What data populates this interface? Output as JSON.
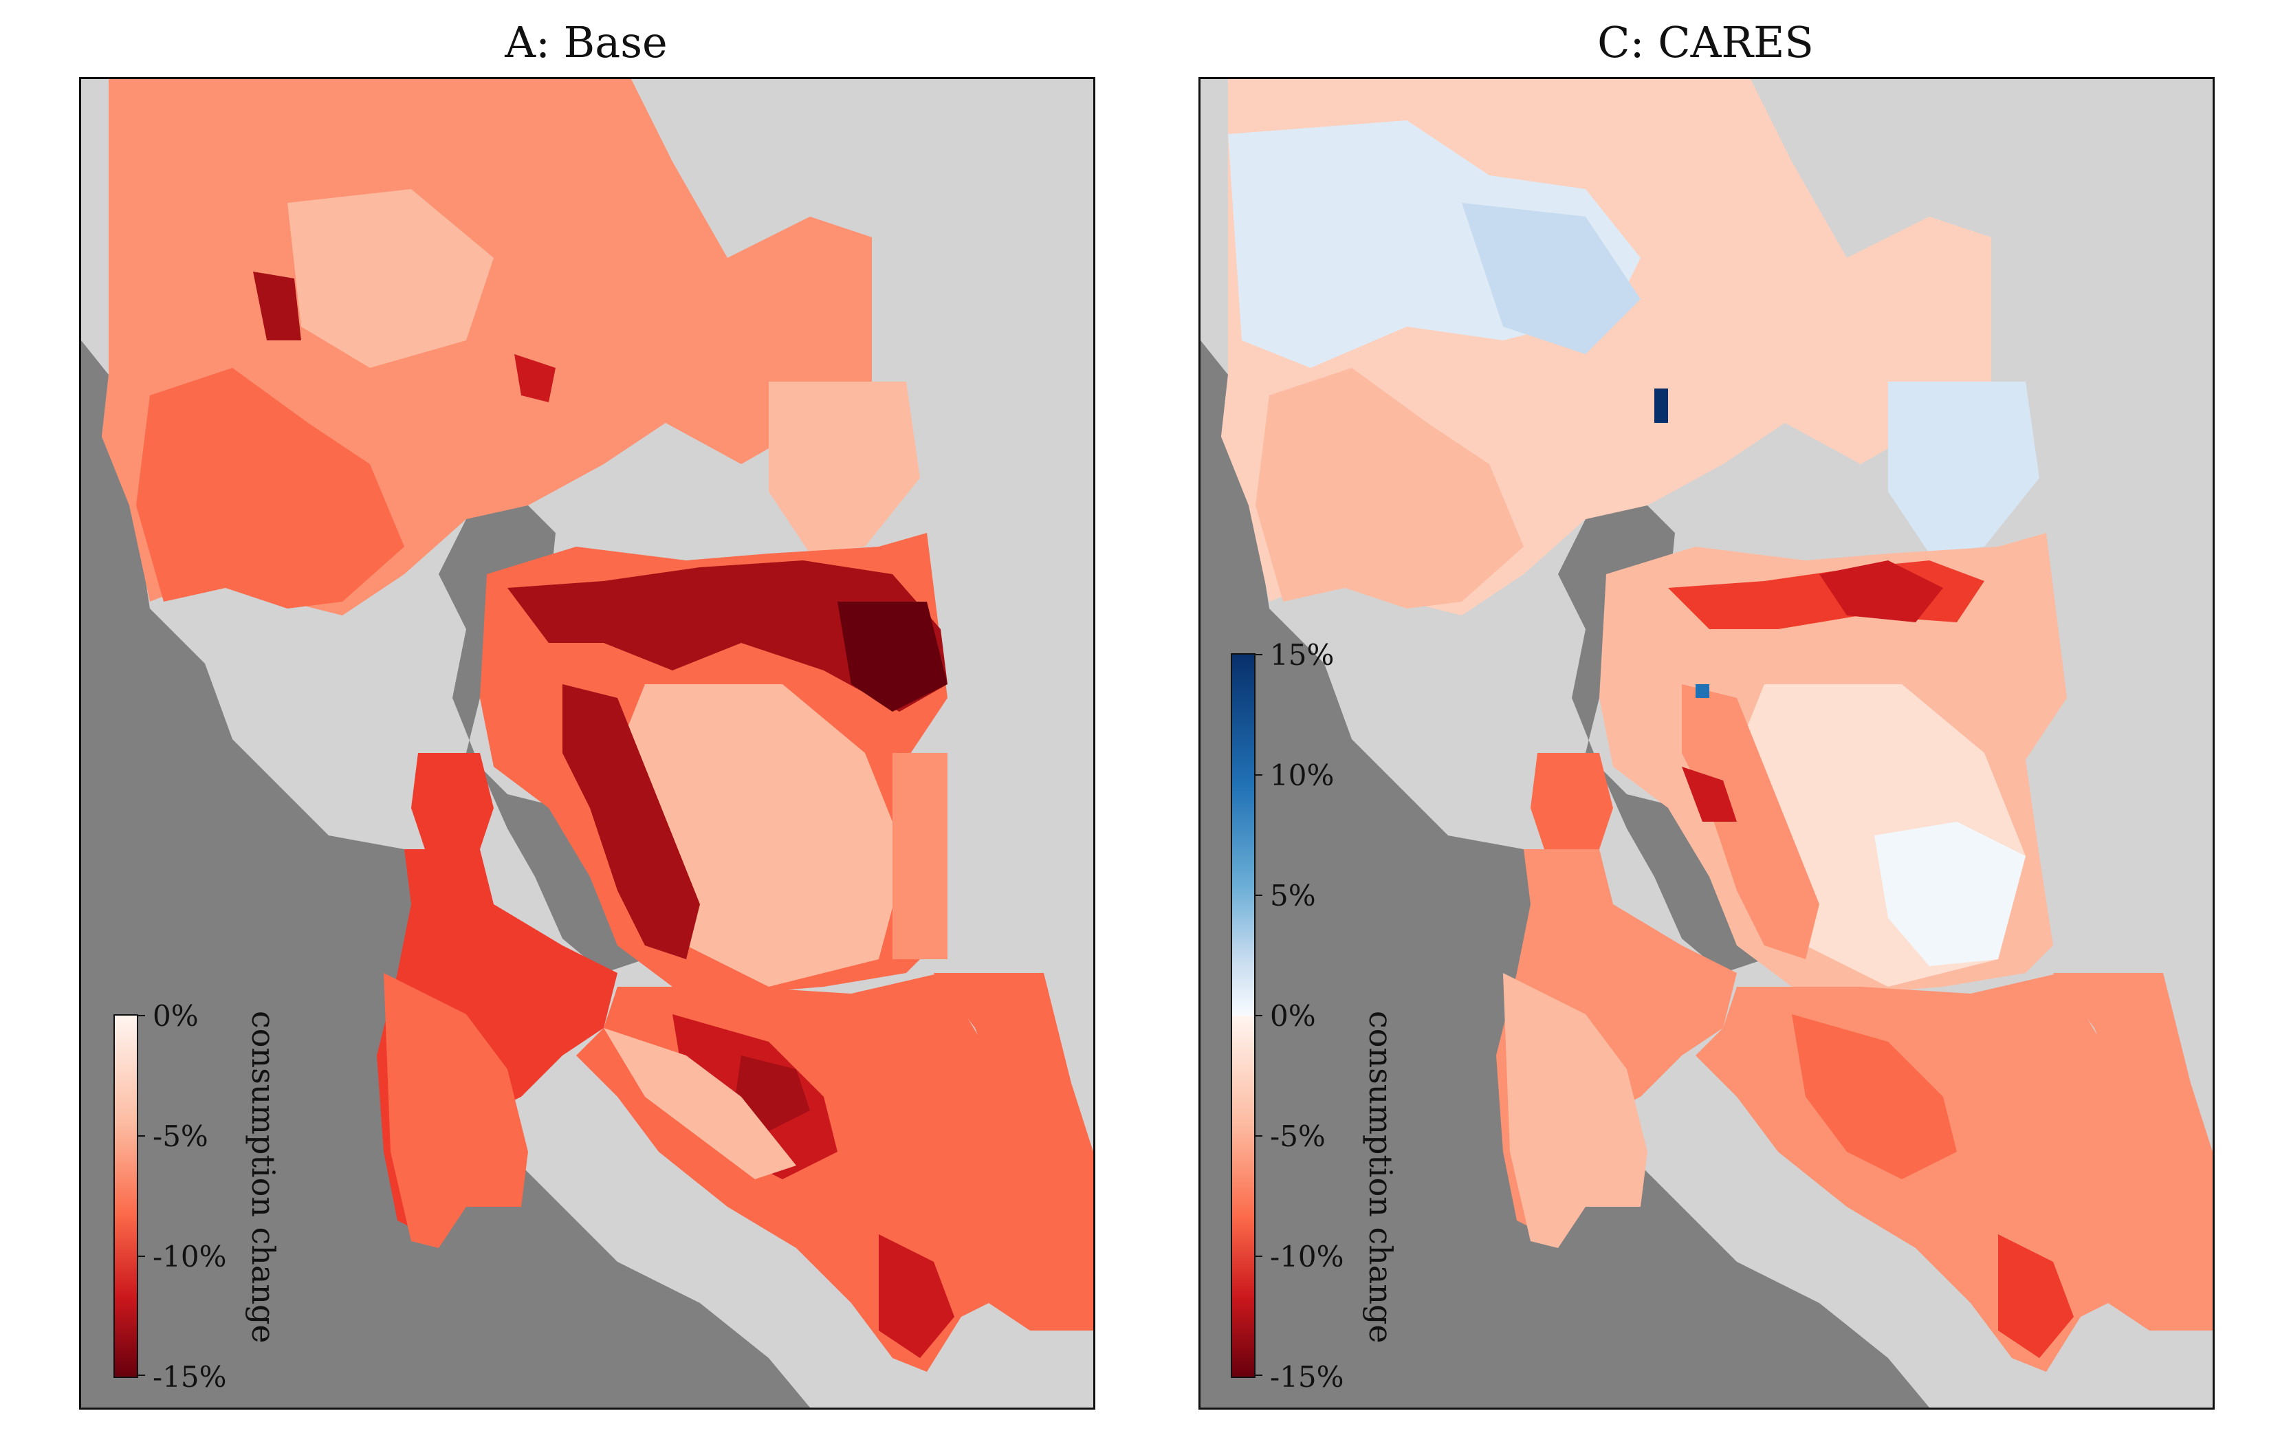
{
  "panels": [
    {
      "title": "A: Base",
      "colorbar": {
        "label": "consumption change",
        "ticks": [
          "0%",
          "-5%",
          "-10%",
          "-15%"
        ],
        "range": [
          -15,
          0
        ]
      }
    },
    {
      "title": "C: CARES",
      "colorbar": {
        "label": "consumption change",
        "ticks": [
          "15%",
          "10%",
          "5%",
          "0%",
          "-5%",
          "-10%",
          "-15%"
        ],
        "range": [
          -15,
          15
        ]
      }
    }
  ],
  "colors": {
    "land_outside": "#d3d3d3",
    "water": "#808080",
    "reds": [
      "#fff5f0",
      "#fcbba1",
      "#fb6a4a",
      "#cb181d",
      "#67000d"
    ],
    "blues": [
      "#f7fbff",
      "#c6dbef",
      "#6baed6",
      "#2171b5",
      "#08306b"
    ]
  }
}
